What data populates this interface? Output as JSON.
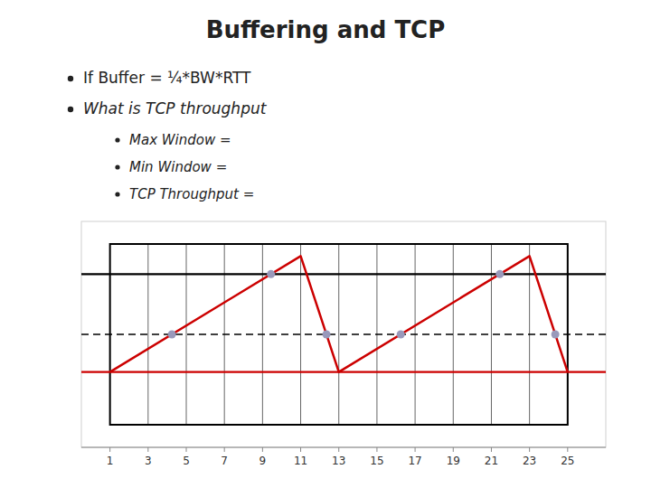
{
  "chart_data": {
    "type": "line",
    "title": "Buffering and TCP",
    "bullets": [
      "If Buffer = ¼*BW*RTT",
      "What is TCP throughput"
    ],
    "sub_bullets": [
      "Max Window =",
      "Min Window =",
      "TCP Throughput ="
    ],
    "xlim": [
      -0.5,
      27
    ],
    "ylim": [
      -1.5,
      13.5
    ],
    "xticks": [
      1,
      3,
      5,
      7,
      9,
      11,
      13,
      15,
      17,
      19,
      21,
      23,
      25
    ],
    "tick_labels": "x",
    "grid": true,
    "box": {
      "x": [
        1,
        25
      ],
      "y": [
        0,
        12
      ]
    },
    "reference_lines": [
      {
        "value": 10.0,
        "color": "#000000",
        "line_style": "solid"
      },
      {
        "value": 6.0,
        "color": "#000000",
        "line_style": "dashed"
      },
      {
        "value": 3.5,
        "color": "#cc0000",
        "line_style": "solid"
      }
    ],
    "series": [
      {
        "type": "line",
        "color": "#cc0000",
        "line_style": "solid",
        "x": [
          1,
          11,
          13,
          23,
          25
        ],
        "values": [
          3.5,
          11.2,
          3.5,
          11.2,
          3.5
        ]
      },
      {
        "type": "scatter",
        "color": "#9999bb",
        "marker": "circle",
        "x": [
          4.246753,
          9.441558,
          12.350649,
          16.246753,
          21.441558,
          24.350649
        ],
        "values": [
          6.0,
          10.0,
          6.0,
          6.0,
          10.0,
          6.0
        ]
      }
    ]
  }
}
